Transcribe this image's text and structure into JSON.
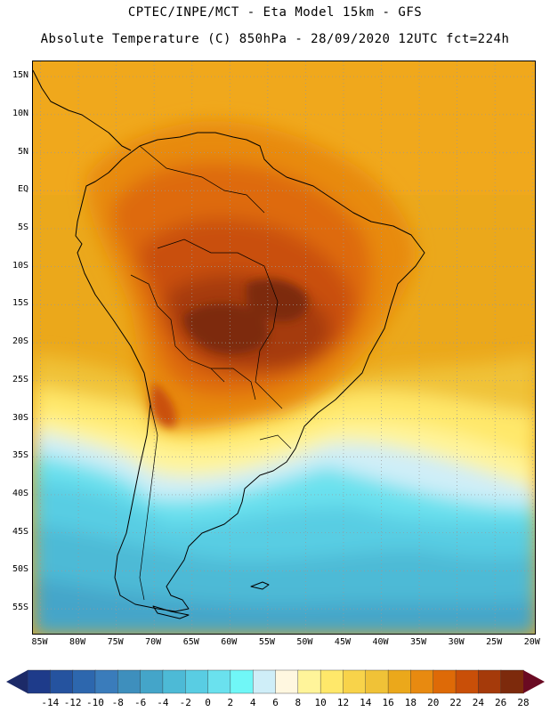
{
  "header": {
    "line1": "CPTEC/INPE/MCT -  Eta Model 15km - GFS",
    "line2": "Absolute Temperature (C) 850hPa - 28/09/2020 12UTC fct=224h"
  },
  "map": {
    "lat_labels": [
      "15N",
      "10N",
      "5N",
      "EQ",
      "5S",
      "10S",
      "15S",
      "20S",
      "25S",
      "30S",
      "35S",
      "40S",
      "45S",
      "50S",
      "55S"
    ],
    "lon_labels": [
      "85W",
      "80W",
      "75W",
      "70W",
      "65W",
      "60W",
      "55W",
      "50W",
      "45W",
      "40W",
      "35W",
      "30W",
      "25W",
      "20W"
    ],
    "lat_range": [
      17,
      -58.5
    ],
    "lon_range": [
      -86,
      -19.5
    ]
  },
  "colorbar": {
    "labels": [
      "-14",
      "-12",
      "-10",
      "-8",
      "-6",
      "-4",
      "-2",
      "0",
      "2",
      "4",
      "6",
      "8",
      "10",
      "12",
      "14",
      "16",
      "18",
      "20",
      "22",
      "24",
      "26",
      "28"
    ],
    "colors": [
      "#1e3b8a",
      "#25539f",
      "#2d67ae",
      "#3a7cbb",
      "#3e8fbd",
      "#44a5c9",
      "#4dbad6",
      "#59cde3",
      "#6ae1ee",
      "#70f7f7",
      "#cfeef8",
      "#fff7e0",
      "#fff49a",
      "#ffe86a",
      "#f8d34a",
      "#f0c237",
      "#eba81b",
      "#e88a10",
      "#de6a07",
      "#c94f08",
      "#a53a0a",
      "#7d2a0c"
    ],
    "under_color": "#1c2a68",
    "over_color": "#6a0a22"
  }
}
